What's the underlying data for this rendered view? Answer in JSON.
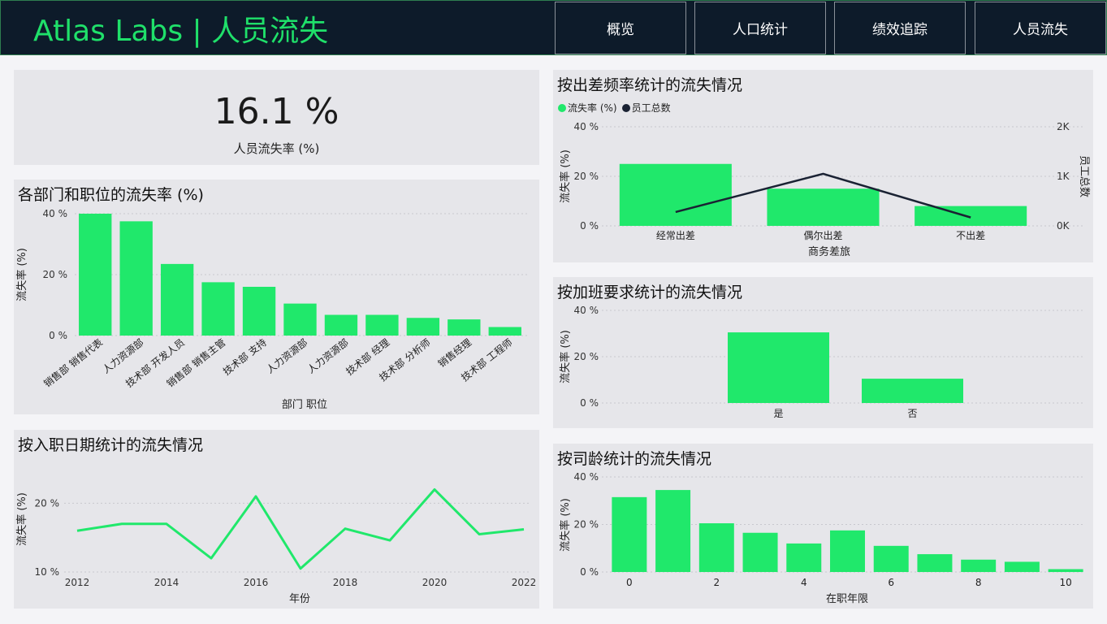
{
  "header": {
    "title": "Atlas Labs | 人员流失",
    "tabs": [
      "概览",
      "人口统计",
      "绩效追踪",
      "人员流失"
    ]
  },
  "kpi": {
    "value": "16.1 %",
    "label": "人员流失率 (%)"
  },
  "colors": {
    "bar": "#20e86b",
    "line_dark": "#1a2233",
    "header_bg": "#0d1b2a",
    "accent": "#1fe06a"
  },
  "dept_chart": {
    "title": "各部门和职位的流失率 (%)",
    "chart_data": {
      "type": "bar",
      "title": "各部门和职位的流失率 (%)",
      "xlabel": "部门 职位",
      "ylabel": "流失率 (%)",
      "ylim": [
        0,
        40
      ],
      "yticks": [
        "0 %",
        "20 %",
        "40 %"
      ],
      "categories": [
        "销售部 销售代表",
        "人力资源部",
        "技术部 开发人员",
        "销售部 销售主管",
        "技术部 支持",
        "人力资源部",
        "人力资源部",
        "技术部 经理",
        "技术部 分析师",
        "销售经理",
        "技术部 工程师"
      ],
      "values": [
        40,
        37.5,
        23.5,
        17.5,
        16,
        10.5,
        6.8,
        6.8,
        5.8,
        5.3,
        2.8
      ]
    }
  },
  "travel_chart": {
    "title": "按出差频率统计的流失情况",
    "legend": [
      "流失率 (%)",
      "员工总数"
    ],
    "chart_data": {
      "type": "bar",
      "title": "按出差频率统计的流失情况",
      "xlabel": "商务差旅",
      "ylabel": "流失率 (%)",
      "y2label": "员工总数",
      "ylim": [
        0,
        40
      ],
      "y2lim": [
        0,
        2000
      ],
      "yticks": [
        "0 %",
        "20 %",
        "40 %"
      ],
      "y2ticks": [
        "0K",
        "1K",
        "2K"
      ],
      "categories": [
        "经常出差",
        "偶尔出差",
        "不出差"
      ],
      "series": [
        {
          "name": "流失率 (%)",
          "type": "bar",
          "values": [
            25,
            15,
            8
          ]
        },
        {
          "name": "员工总数",
          "type": "line",
          "values": [
            280,
            1050,
            170
          ]
        }
      ]
    }
  },
  "overtime_chart": {
    "title": "按加班要求统计的流失情况",
    "chart_data": {
      "type": "bar",
      "title": "按加班要求统计的流失情况",
      "ylabel": "流失率 (%)",
      "ylim": [
        0,
        40
      ],
      "yticks": [
        "0 %",
        "20 %",
        "40 %"
      ],
      "categories": [
        "是",
        "否"
      ],
      "values": [
        30.5,
        10.5
      ]
    }
  },
  "hire_chart": {
    "title": "按入职日期统计的流失情况",
    "chart_data": {
      "type": "line",
      "title": "按入职日期统计的流失情况",
      "xlabel": "年份",
      "ylabel": "流失率 (%)",
      "ylim": [
        10,
        23
      ],
      "yticks": [
        "10 %",
        "20 %"
      ],
      "xticks": [
        "2012",
        "2014",
        "2016",
        "2018",
        "2020",
        "2022"
      ],
      "x": [
        2012,
        2013,
        2014,
        2015,
        2016,
        2017,
        2018,
        2019,
        2020,
        2021,
        2022
      ],
      "values": [
        16,
        17,
        17,
        12,
        21,
        10.5,
        16.3,
        14.6,
        22,
        15.5,
        16.2
      ]
    }
  },
  "tenure_chart": {
    "title": "按司龄统计的流失情况",
    "chart_data": {
      "type": "bar",
      "title": "按司龄统计的流失情况",
      "xlabel": "在职年限",
      "ylabel": "流失率 (%)",
      "ylim": [
        0,
        40
      ],
      "yticks": [
        "0 %",
        "20 %",
        "40 %"
      ],
      "xticks": [
        "0",
        "2",
        "4",
        "6",
        "8",
        "10"
      ],
      "x": [
        0,
        1,
        2,
        3,
        4,
        5,
        6,
        7,
        8,
        9,
        10
      ],
      "values": [
        31.5,
        34.5,
        20.5,
        16.5,
        12,
        17.5,
        11,
        7.5,
        5.2,
        4.3,
        1.2
      ]
    }
  }
}
